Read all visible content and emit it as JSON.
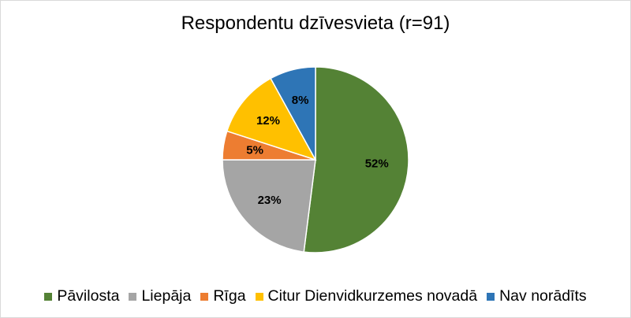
{
  "chart_data": {
    "type": "pie",
    "title": "Respondentu dzīvesvieta (r=91)",
    "slices": [
      {
        "label": "Pāvilosta",
        "value": 52,
        "display": "52%",
        "color": "#548235"
      },
      {
        "label": "Liepāja",
        "value": 23,
        "display": "23%",
        "color": "#a5a5a5"
      },
      {
        "label": "Rīga",
        "value": 5,
        "display": "5%",
        "color": "#ed7d31"
      },
      {
        "label": "Citur Dienvidkurzemes novadā",
        "value": 12,
        "display": "12%",
        "color": "#ffc000"
      },
      {
        "label": "Nav norādīts",
        "value": 8,
        "display": "8%",
        "color": "#2e75b6"
      }
    ],
    "legend_position": "bottom"
  }
}
